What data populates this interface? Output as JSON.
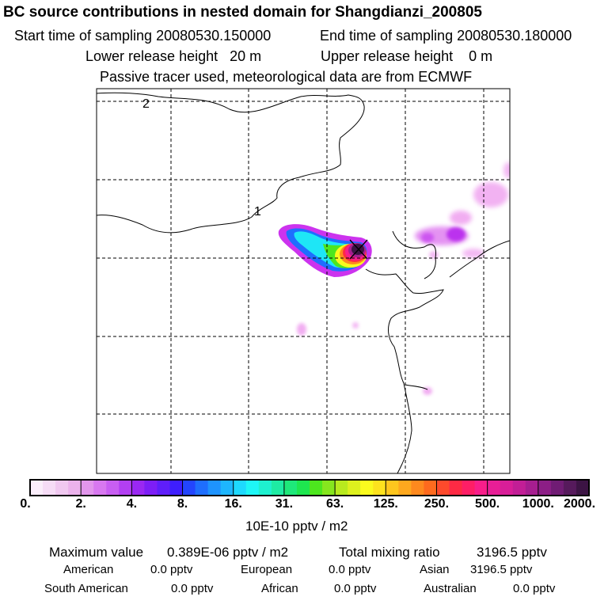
{
  "chart_data": {
    "type": "heatmap",
    "title": "BC  source contributions in nested domain for Shangdianzi_200805",
    "header": {
      "start_label": "Start time of sampling",
      "start_value": "20080530.150000",
      "end_label": "End time of sampling",
      "end_value": "20080530.180000",
      "lower_label": "Lower release height",
      "lower_value": "20 m",
      "upper_label": "Upper release height",
      "upper_value": "0 m",
      "note": "Passive tracer used, meteorological data are from ECMWF"
    },
    "map_labels": [
      "2",
      "1"
    ],
    "colorbar": {
      "tick_labels": [
        "0.",
        "2.",
        "4.",
        "8.",
        "16.",
        "31.",
        "63.",
        "125.",
        "250.",
        "500.",
        "1000.",
        "2000."
      ],
      "unit_label": "10E-10 pptv / m2",
      "colors": [
        "#fbeefb",
        "#f6dcf6",
        "#f0c8f0",
        "#ebb2ec",
        "#e296ec",
        "#d878f0",
        "#c85ef2",
        "#b23ff2",
        "#9a28f2",
        "#7d1ef6",
        "#5f1efa",
        "#3e1efe",
        "#2345fe",
        "#1e6efe",
        "#1e93fe",
        "#1eb6fe",
        "#1ed9fe",
        "#1ef6f6",
        "#1ef0cf",
        "#1eeba3",
        "#1ee87a",
        "#1ee64f",
        "#4de61e",
        "#86e61e",
        "#b8ea1e",
        "#ddf01e",
        "#fafa1e",
        "#fde21e",
        "#fec61e",
        "#fea81e",
        "#fe891e",
        "#fe6a1e",
        "#fe4a2c",
        "#fe2a44",
        "#fe1e66",
        "#f81e8a",
        "#e81e96",
        "#d81e98",
        "#c21e96",
        "#a61e90",
        "#8c1e86",
        "#701c74",
        "#561a5c",
        "#3c1444"
      ]
    },
    "stats": {
      "max_label": "Maximum value",
      "max_value": "0.389E-06 pptv / m2",
      "total_label": "Total mixing ratio",
      "total_value": "3196.5 pptv",
      "regions": [
        {
          "name": "American",
          "value": "0.0 pptv"
        },
        {
          "name": "European",
          "value": "0.0 pptv"
        },
        {
          "name": "Asian",
          "value": "3196.5 pptv"
        },
        {
          "name": "South American",
          "value": "0.0 pptv"
        },
        {
          "name": "African",
          "value": "0.0 pptv"
        },
        {
          "name": "Australian",
          "value": "0.0 pptv"
        }
      ]
    },
    "colors": {
      "frame": "#000000",
      "grid": "#000000",
      "magenta": "#cc33ee",
      "light_magenta": "#ee99ee",
      "cyan": "#1ee6f6",
      "dark": "#3c1444"
    }
  }
}
